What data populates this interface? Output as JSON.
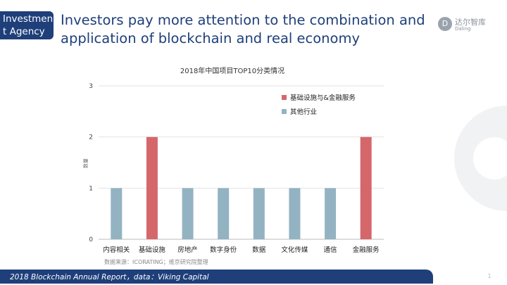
{
  "header": {
    "tag": "Investment Agency",
    "headline": "Investors pay more attention to the combination and application of blockchain and real economy"
  },
  "logo": {
    "name_cn": "达尔智库",
    "name_en": "Daling",
    "icon": "dd-icon"
  },
  "chart_data": {
    "type": "bar",
    "title": "2018年中国项目TOP10分类情况",
    "ylabel": "数量",
    "xlabel": "",
    "ylim": [
      0,
      3
    ],
    "yticks": [
      0,
      1,
      2,
      3
    ],
    "grid": true,
    "legend_position": "top-right",
    "categories": [
      "内容相关",
      "基础设施",
      "房地产",
      "数字身份",
      "数据",
      "文化传媒",
      "通信",
      "金融服务"
    ],
    "values": [
      1,
      2,
      1,
      1,
      1,
      1,
      1,
      2
    ],
    "series_membership": [
      "其他行业",
      "基础设施与&金融服务",
      "其他行业",
      "其他行业",
      "其他行业",
      "其他行业",
      "其他行业",
      "基础设施与&金融服务"
    ],
    "legend": [
      {
        "name": "基础设施与&金融服务",
        "color": "#d5676b"
      },
      {
        "name": "其他行业",
        "color": "#93b3c2"
      }
    ]
  },
  "source_note": "数据来源：ICORATING；维京研究院整理",
  "footer": {
    "text": "2018 Blockchain Annual Report，data：Viking Capital",
    "page": "1"
  }
}
